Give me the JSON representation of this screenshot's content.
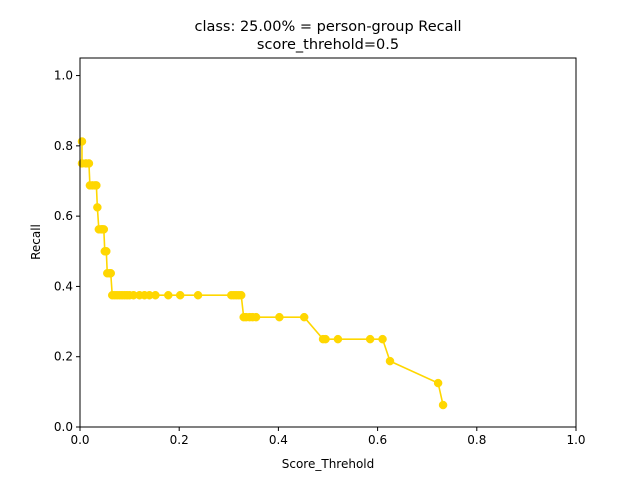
{
  "chart_data": {
    "type": "line",
    "title_lines": [
      "class: 25.00% = person-group Recall",
      "score_threhold=0.5"
    ],
    "xlabel": "Score_Threhold",
    "ylabel": "Recall",
    "xlim": [
      0.0,
      1.0
    ],
    "ylim": [
      0.0,
      1.05
    ],
    "xticks": [
      "0.0",
      "0.2",
      "0.4",
      "0.6",
      "0.8",
      "1.0"
    ],
    "yticks": [
      "0.0",
      "0.2",
      "0.4",
      "0.6",
      "0.8",
      "1.0"
    ],
    "grid": false,
    "series_color": "#FFD700",
    "series": [
      {
        "x": [
          0.004,
          0.004,
          0.012,
          0.018,
          0.02,
          0.025,
          0.03,
          0.033,
          0.035,
          0.038,
          0.043,
          0.045,
          0.048,
          0.05,
          0.053,
          0.055,
          0.06,
          0.062,
          0.065,
          0.07,
          0.075,
          0.08,
          0.085,
          0.09,
          0.095,
          0.1,
          0.108,
          0.12,
          0.13,
          0.14,
          0.152,
          0.178,
          0.202,
          0.238,
          0.305,
          0.31,
          0.315,
          0.32,
          0.325,
          0.33,
          0.335,
          0.342,
          0.348,
          0.355,
          0.402,
          0.452,
          0.49,
          0.495,
          0.52,
          0.585,
          0.61,
          0.625,
          0.722,
          0.732
        ],
        "y": [
          0.8125,
          0.75,
          0.75,
          0.75,
          0.6875,
          0.6875,
          0.6875,
          0.6875,
          0.625,
          0.5625,
          0.5625,
          0.5625,
          0.5625,
          0.5,
          0.5,
          0.4375,
          0.4375,
          0.4375,
          0.375,
          0.375,
          0.375,
          0.375,
          0.375,
          0.375,
          0.375,
          0.375,
          0.375,
          0.375,
          0.375,
          0.375,
          0.375,
          0.375,
          0.375,
          0.375,
          0.375,
          0.375,
          0.375,
          0.375,
          0.375,
          0.3125,
          0.3125,
          0.3125,
          0.3125,
          0.3125,
          0.3125,
          0.3125,
          0.25,
          0.25,
          0.25,
          0.25,
          0.25,
          0.1875,
          0.125,
          0.0625
        ]
      }
    ]
  }
}
